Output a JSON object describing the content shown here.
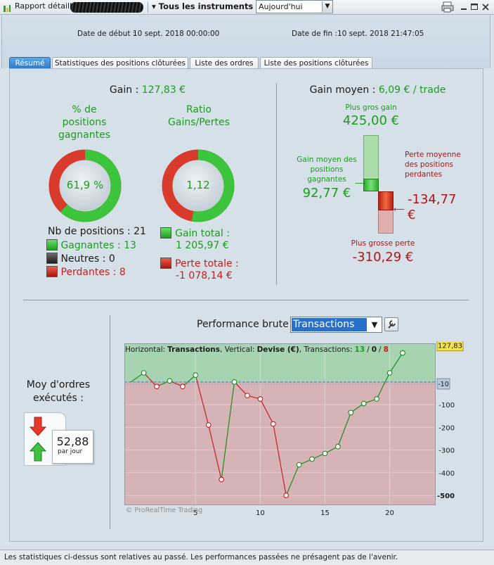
{
  "toolbar": {
    "report_label": "Rapport détaillé",
    "instruments_label": "Tous les instruments",
    "period_value": "Aujourd'hui"
  },
  "header": {
    "start_label": "Date de début :",
    "start_value": "10 sept. 2018 00:00:00",
    "end_label": "Date de fin :",
    "end_value": "10 sept. 2018 21:47:05"
  },
  "tabs": [
    {
      "label": "Résumé"
    },
    {
      "label": "Statistiques des positions clôturées"
    },
    {
      "label": "Liste des ordres"
    },
    {
      "label": "Liste des positions clôturées"
    }
  ],
  "summary": {
    "gain_label": "Gain :",
    "gain_value": "127,83 €",
    "pct_title": "% de positions gagnantes",
    "pct_value": "61,9 %",
    "pct_fraction": 0.619,
    "ratio_title": "Ratio Gains/Pertes",
    "ratio_value": "1,12",
    "ratio_fraction": 0.528,
    "nb_positions": "Nb de positions : 21",
    "winners": "Gagnantes : 13",
    "neutral": "Neutres : 0",
    "losers": "Perdantes : 8",
    "gain_total_label": "Gain total :",
    "gain_total_value": "1 205,97 €",
    "loss_total_label": "Perte totale :",
    "loss_total_value": "-1 078,14 €"
  },
  "avg": {
    "title_label": "Gain moyen :",
    "title_value": "6,09 € / trade",
    "max_gain_label": "Plus gros gain",
    "max_gain_value": "425,00 €",
    "avg_win_label": "Gain moyen des positions gagnantes",
    "avg_win_value": "92,77 €",
    "avg_loss_label": "Perte moyenne des positions perdantes",
    "avg_loss_value": "-134,77 €",
    "max_loss_label": "Plus grosse perte",
    "max_loss_value": "-310,29 €"
  },
  "orders": {
    "title": "Moy d'ordres exécutés :",
    "value": "52,88",
    "unit": "par jour"
  },
  "perf": {
    "title": "Performance brute",
    "select_value": "Transactions"
  },
  "chart_info": {
    "h_label": "Horizontal:",
    "h_value": "Transactions",
    "v_label": ", Vertical:",
    "v_value": "Devise (€)",
    "t_label": ", Transactions:",
    "t_win": "13",
    "t_sep1": "/",
    "t_neutral": "0",
    "t_sep2": "/",
    "t_loss": "8",
    "watermark": "© ProRealTime Trading"
  },
  "chart_data": {
    "type": "line",
    "x": [
      0,
      1,
      2,
      3,
      4,
      5,
      6,
      7,
      8,
      9,
      10,
      11,
      12,
      13,
      14,
      15,
      16,
      17,
      18,
      19,
      20,
      21
    ],
    "y": [
      0,
      40,
      -20,
      5,
      -20,
      30,
      -190,
      -430,
      0,
      -60,
      -75,
      -185,
      -500,
      -365,
      -340,
      -315,
      -285,
      -135,
      -95,
      -75,
      40,
      127.83
    ],
    "xlim": [
      -0.5,
      23.5
    ],
    "ylim": [
      -540,
      170
    ],
    "x_ticks": [
      5,
      10,
      15,
      20
    ],
    "y_ticks": [
      -100,
      -200,
      -300,
      -400,
      -500
    ],
    "last_value_label": "127,83",
    "reference_label": "-10",
    "reference_value": -10,
    "colors": {
      "up": "#1a8c1a",
      "down": "#c81e1e",
      "positive_zone": "#a6d4b0",
      "negative_zone": "#d6b3b7"
    }
  },
  "footer": {
    "disclaimer": "Les statistiques ci-dessus sont relatives au passé. Les performances passées ne présagent pas de l'avenir."
  }
}
